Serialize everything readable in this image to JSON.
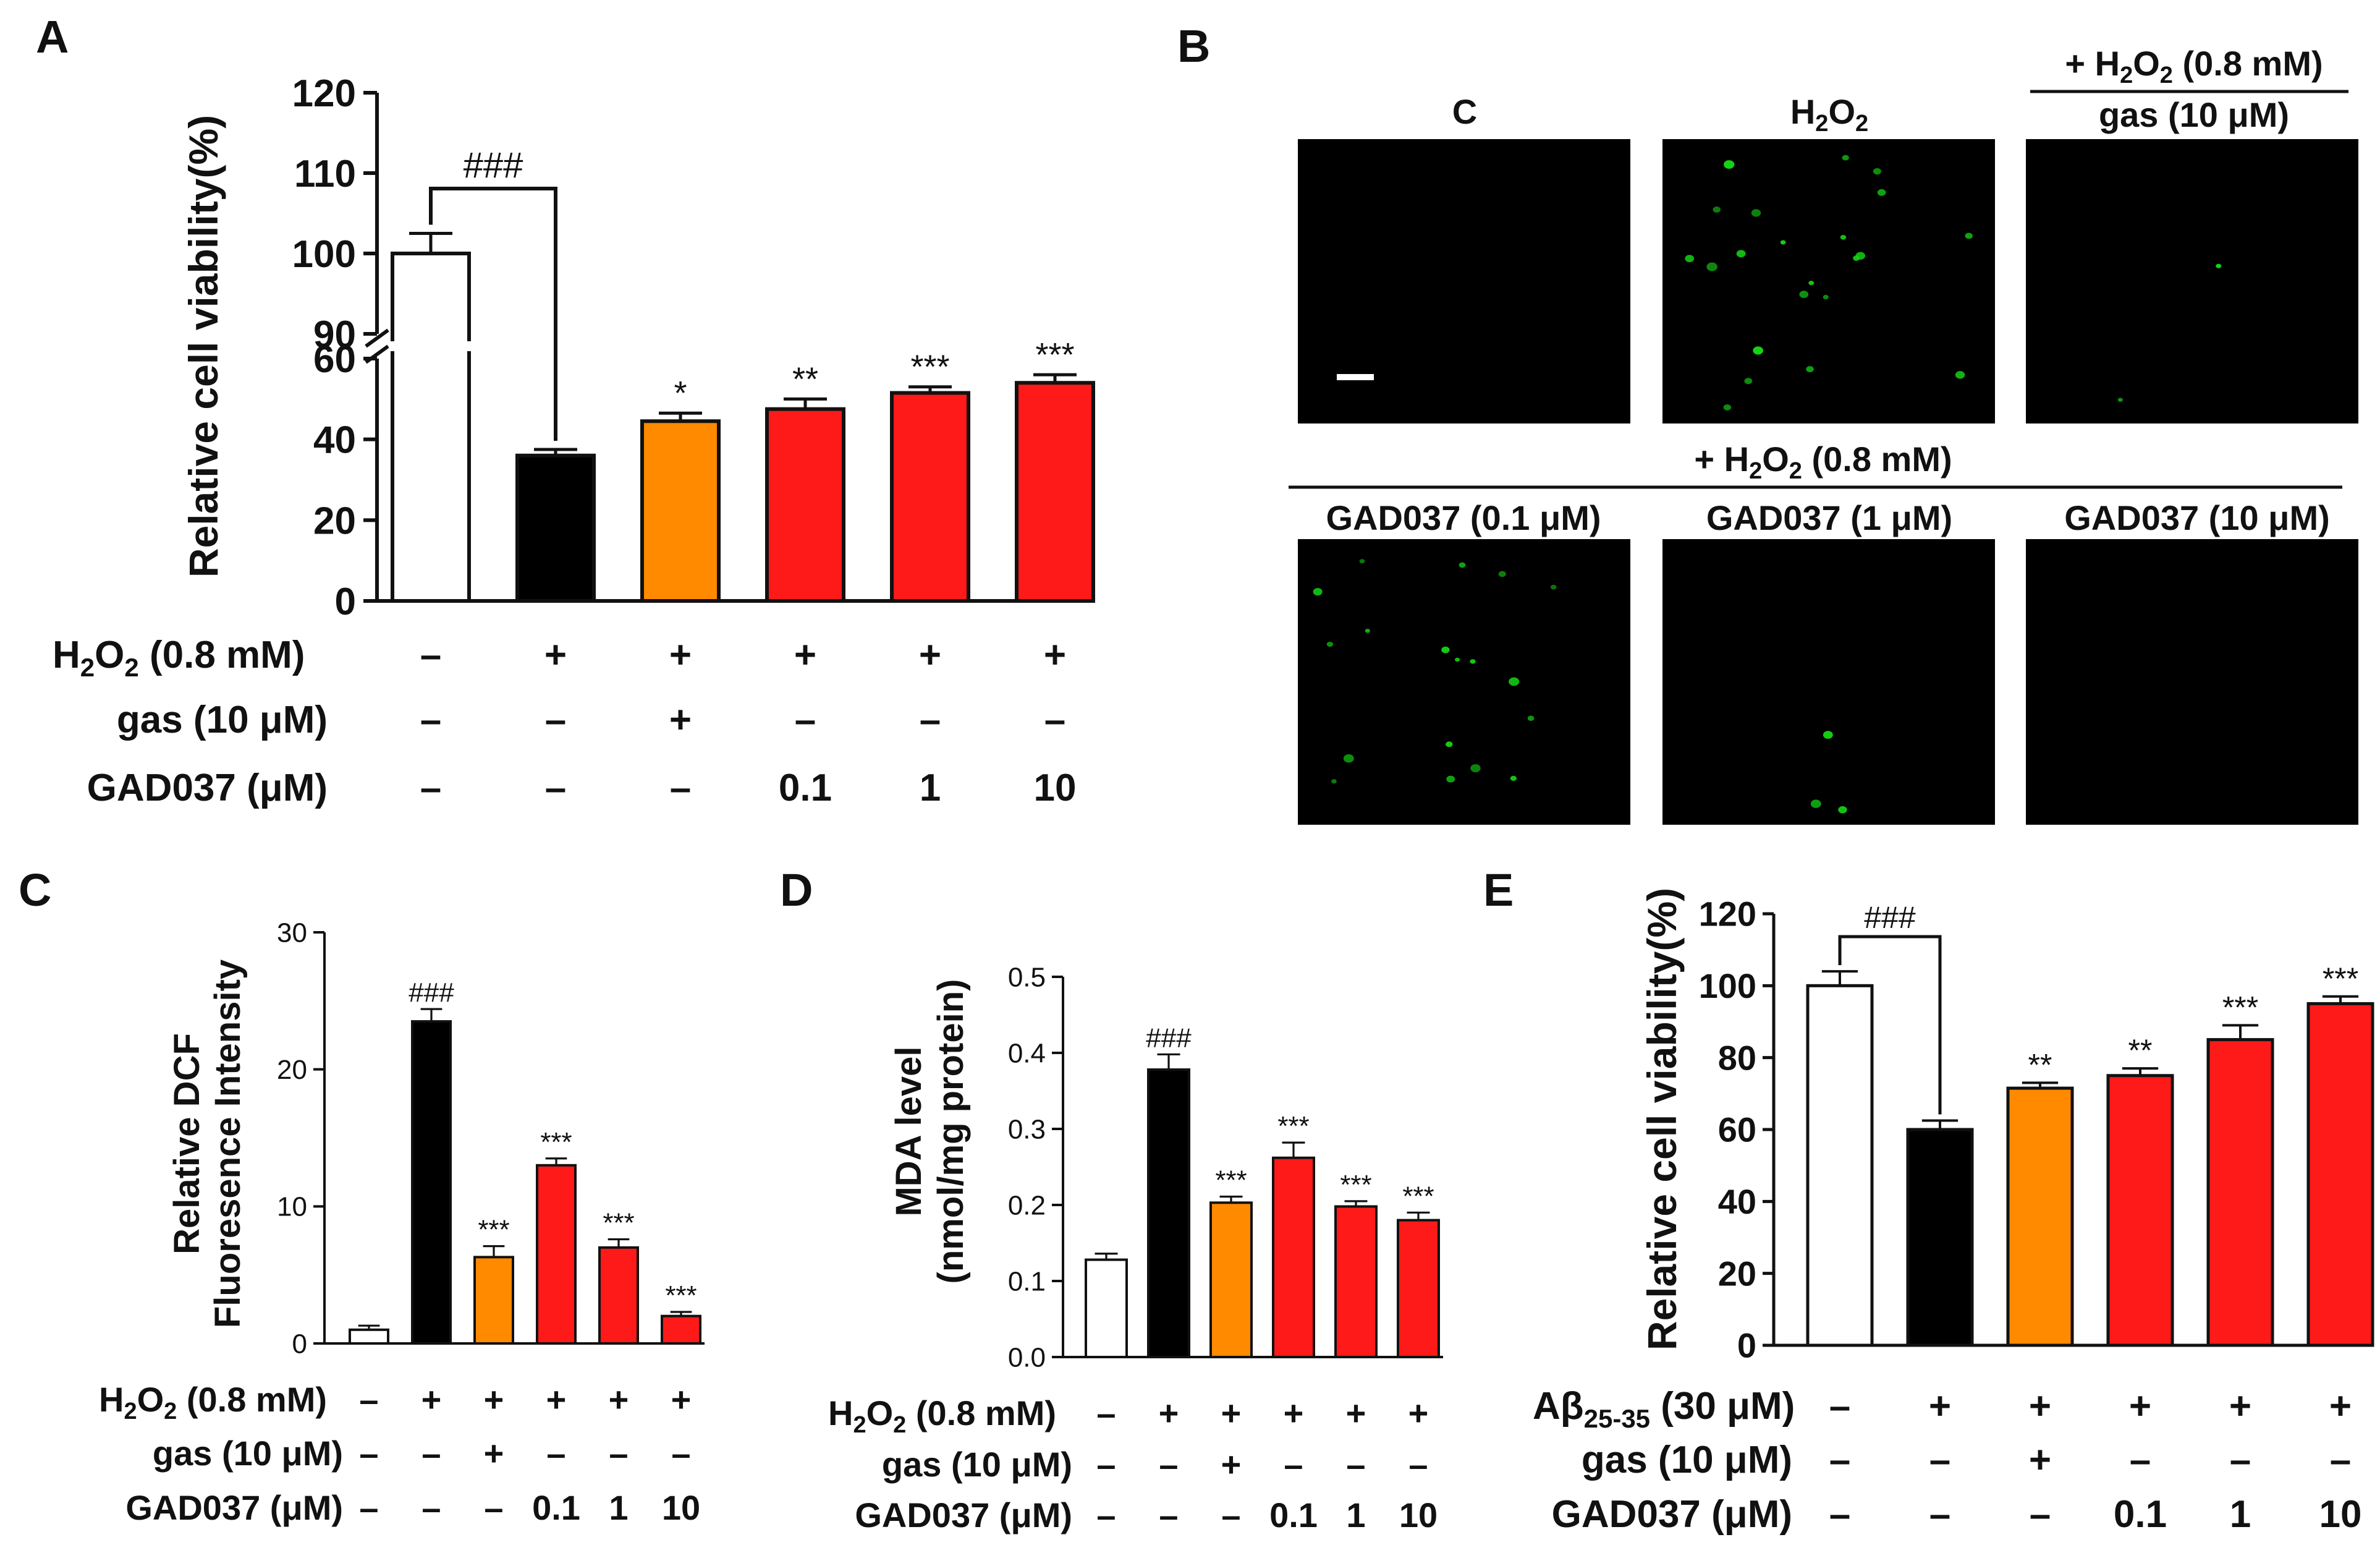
{
  "colors": {
    "control": "#ffffff",
    "h2o2": "#000000",
    "gas": "#ff8a00",
    "gad": "#ff1a1a",
    "fluor": "#14d414",
    "img_bg": "#000000"
  },
  "panel_labels": {
    "A": "A",
    "B": "B",
    "C": "C",
    "D": "D",
    "E": "E"
  },
  "row_labels": {
    "h2o2_prefix": "H",
    "h2o2_sub": "2",
    "h2o2_mid": "O",
    "h2o2_sub2": "2",
    "h2o2_conc": " (0.8 mM)",
    "gas": "gas (10 μM)",
    "gad": "GAD037 (μM)",
    "abeta_prefix": "Aβ",
    "abeta_sub": "25-35",
    "abeta_conc": " (30 μM)"
  },
  "treatment_marks": {
    "h2o2": [
      "–",
      "+",
      "+",
      "+",
      "+",
      "+"
    ],
    "gas": [
      "–",
      "–",
      "+",
      "–",
      "–",
      "–"
    ],
    "gad": [
      "–",
      "–",
      "–",
      "0.1",
      "1",
      "10"
    ]
  },
  "panel_B": {
    "titles": {
      "c": "C",
      "h2o2_h": "H",
      "h2o2_sub": "2",
      "h2o2_o": "O",
      "h2o2_sub2": "2",
      "group_plus": "+ H",
      "group_sub": "2",
      "group_o": "O",
      "group_sub2": "2",
      "group_conc": " (0.8 mM)",
      "gas": "gas (10 μM)",
      "gad01": "GAD037 (0.1 μM)",
      "gad1": "GAD037 (1 μM)",
      "gad10": "GAD037 (10 μM)"
    },
    "cell_counts": [
      0,
      22,
      2,
      18,
      3,
      0
    ]
  },
  "chart_data": [
    {
      "id": "A",
      "type": "bar",
      "ylabel": "Relative cell viability(%)",
      "categories": [
        "Control",
        "H2O2",
        "H2O2+gas",
        "H2O2+GAD037 0.1",
        "H2O2+GAD037 1",
        "H2O2+GAD037 10"
      ],
      "values": [
        100,
        36,
        44.5,
        47.5,
        51.5,
        54
      ],
      "errors": [
        2.5,
        1.5,
        2,
        2.5,
        1.5,
        2
      ],
      "significance": [
        "",
        "",
        "*",
        "**",
        "***",
        "***"
      ],
      "bracket": {
        "from": 0,
        "to": 1,
        "label": "###"
      },
      "axis_break": {
        "lower": [
          0,
          60
        ],
        "upper": [
          90,
          120
        ]
      },
      "lower_ticks": [
        "0",
        "20",
        "40",
        "60"
      ],
      "upper_ticks": [
        "90",
        "100",
        "110",
        "120"
      ]
    },
    {
      "id": "C",
      "type": "bar",
      "ylabel_line1": "Relative DCF",
      "ylabel_line2": "Fluoresence Intensity",
      "categories": [
        "Control",
        "H2O2",
        "H2O2+gas",
        "H2O2+GAD037 0.1",
        "H2O2+GAD037 1",
        "H2O2+GAD037 10"
      ],
      "values": [
        1,
        23.5,
        6.3,
        13,
        7,
        2
      ],
      "errors": [
        0.3,
        0.9,
        0.8,
        0.5,
        0.6,
        0.3
      ],
      "significance": [
        "",
        "###",
        "***",
        "***",
        "***",
        "***"
      ],
      "ylim": [
        0,
        30
      ],
      "ticks": [
        "0",
        "10",
        "20",
        "30"
      ]
    },
    {
      "id": "D",
      "type": "bar",
      "ylabel_line1": "MDA level",
      "ylabel_line2": "(nmol/mg protein)",
      "categories": [
        "Control",
        "H2O2",
        "H2O2+gas",
        "H2O2+GAD037 0.1",
        "H2O2+GAD037 1",
        "H2O2+GAD037 10"
      ],
      "values": [
        0.128,
        0.378,
        0.203,
        0.262,
        0.198,
        0.18
      ],
      "errors": [
        0.008,
        0.02,
        0.008,
        0.02,
        0.007,
        0.01
      ],
      "significance": [
        "",
        "###",
        "***",
        "***",
        "***",
        "***"
      ],
      "ylim": [
        0,
        0.5
      ],
      "ticks": [
        "0.0",
        "0.1",
        "0.2",
        "0.3",
        "0.4",
        "0.5"
      ]
    },
    {
      "id": "E",
      "type": "bar",
      "ylabel": "Relative cell viability(%)",
      "categories": [
        "Control",
        "Abeta25-35",
        "Abeta+gas",
        "Abeta+GAD037 0.1",
        "Abeta+GAD037 1",
        "Abeta+GAD037 10"
      ],
      "values": [
        100,
        60,
        71.5,
        75,
        85,
        95
      ],
      "errors": [
        4,
        2.5,
        1.5,
        2,
        4,
        2
      ],
      "significance": [
        "",
        "",
        "**",
        "**",
        "***",
        "***"
      ],
      "bracket": {
        "from": 0,
        "to": 1,
        "label": "###"
      },
      "ylim": [
        0,
        120
      ],
      "ticks": [
        "0",
        "20",
        "40",
        "60",
        "80",
        "100",
        "120"
      ]
    }
  ]
}
